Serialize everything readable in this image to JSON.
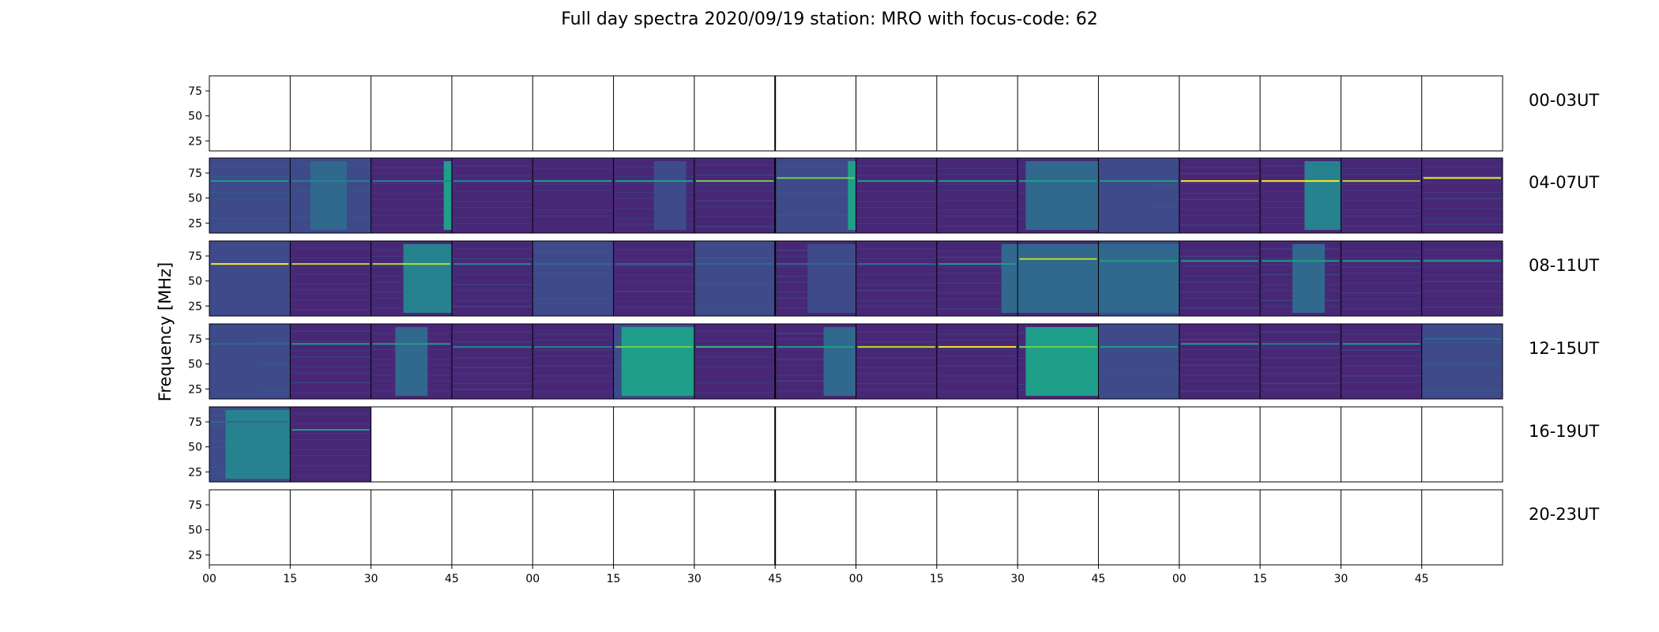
{
  "chart_data": {
    "type": "heatmap",
    "title": "Full day spectra 2020/09/19 station: MRO with focus-code: 62",
    "ylabel": "Frequency [MHz]",
    "xlabel": "",
    "y_ticks": [
      "75",
      "50",
      "25"
    ],
    "ylim": [
      15,
      90
    ],
    "x_ticks": [
      "00",
      "15",
      "30",
      "45",
      "00",
      "15",
      "30",
      "45",
      "00",
      "15",
      "30",
      "45",
      "00",
      "15",
      "30",
      "45"
    ],
    "panels_per_row": 16,
    "minutes_per_panel": 15,
    "colormap": [
      "#440154",
      "#482777",
      "#3e4a89",
      "#31688e",
      "#26828e",
      "#1f9e89",
      "#35b779",
      "#6ece58",
      "#b5de2b",
      "#fde725"
    ],
    "rows": [
      {
        "label": "00-03UT",
        "panels": []
      },
      {
        "label": "04-07UT",
        "panels": [
          {
            "level": 0.2,
            "band_y": 67,
            "band_level": 0.55,
            "burst": null
          },
          {
            "level": 0.18,
            "band_y": 67,
            "band_level": 0.45,
            "burst": {
              "x0": 0.25,
              "x1": 0.7,
              "level": 0.28
            }
          },
          {
            "level": 0.15,
            "band_y": 67,
            "band_level": 0.45,
            "burst": {
              "x0": 0.9,
              "x1": 1.0,
              "level": 0.55
            }
          },
          {
            "level": 0.12,
            "band_y": 67,
            "band_level": 0.45,
            "burst": null
          },
          {
            "level": 0.08,
            "band_y": 67,
            "band_level": 0.5,
            "burst": null
          },
          {
            "level": 0.14,
            "band_y": 67,
            "band_level": 0.55,
            "burst": {
              "x0": 0.5,
              "x1": 0.9,
              "level": 0.22
            }
          },
          {
            "level": 0.16,
            "band_y": 67,
            "band_level": 0.75,
            "burst": null
          },
          {
            "level": 0.18,
            "band_y": 70,
            "band_level": 0.8,
            "burst": {
              "x0": 0.9,
              "x1": 1.0,
              "level": 0.55
            }
          },
          {
            "level": 0.15,
            "band_y": 67,
            "band_level": 0.5,
            "burst": null
          },
          {
            "level": 0.15,
            "band_y": 67,
            "band_level": 0.5,
            "burst": null
          },
          {
            "level": 0.1,
            "band_y": 67,
            "band_level": 0.6,
            "burst": {
              "x0": 0.1,
              "x1": 1.0,
              "level": 0.3
            }
          },
          {
            "level": 0.18,
            "band_y": 67,
            "band_level": 0.5,
            "burst": {
              "x0": 0.0,
              "x1": 0.7,
              "level": 0.25
            }
          },
          {
            "level": 0.16,
            "band_y": 67,
            "band_level": 0.95,
            "burst": null
          },
          {
            "level": 0.15,
            "band_y": 67,
            "band_level": 0.95,
            "burst": {
              "x0": 0.55,
              "x1": 1.0,
              "level": 0.4
            }
          },
          {
            "level": 0.15,
            "band_y": 67,
            "band_level": 0.9,
            "burst": null
          },
          {
            "level": 0.16,
            "band_y": 70,
            "band_level": 0.95,
            "burst": null
          }
        ]
      },
      {
        "label": "08-11UT",
        "panels": [
          {
            "level": 0.22,
            "band_y": 67,
            "band_level": 0.95,
            "burst": {
              "x0": 0.0,
              "x1": 1.0,
              "level": 0.25
            }
          },
          {
            "level": 0.12,
            "band_y": 67,
            "band_level": 0.9,
            "burst": null
          },
          {
            "level": 0.14,
            "band_y": 67,
            "band_level": 0.9,
            "burst": {
              "x0": 0.4,
              "x1": 1.0,
              "level": 0.48
            }
          },
          {
            "level": 0.16,
            "band_y": 67,
            "band_level": 0.45,
            "burst": null
          },
          {
            "level": 0.18,
            "band_y": 67,
            "band_level": 0.3,
            "burst": null
          },
          {
            "level": 0.16,
            "band_y": 67,
            "band_level": 0.3,
            "burst": null
          },
          {
            "level": 0.18,
            "band_y": 67,
            "band_level": 0.3,
            "burst": null
          },
          {
            "level": 0.16,
            "band_y": 67,
            "band_level": 0.3,
            "burst": {
              "x0": 0.4,
              "x1": 1.0,
              "level": 0.25
            }
          },
          {
            "level": 0.16,
            "band_y": 67,
            "band_level": 0.3,
            "burst": null
          },
          {
            "level": 0.16,
            "band_y": 67,
            "band_level": 0.5,
            "burst": {
              "x0": 0.8,
              "x1": 1.0,
              "level": 0.35
            }
          },
          {
            "level": 0.14,
            "band_y": 72,
            "band_level": 0.85,
            "burst": {
              "x0": 0.0,
              "x1": 1.0,
              "level": 0.3
            }
          },
          {
            "level": 0.18,
            "band_y": 70,
            "band_level": 0.6,
            "burst": {
              "x0": 0.0,
              "x1": 1.0,
              "level": 0.28
            }
          },
          {
            "level": 0.16,
            "band_y": 70,
            "band_level": 0.6,
            "burst": null
          },
          {
            "level": 0.16,
            "band_y": 70,
            "band_level": 0.55,
            "burst": {
              "x0": 0.4,
              "x1": 0.8,
              "level": 0.35
            }
          },
          {
            "level": 0.16,
            "band_y": 70,
            "band_level": 0.55,
            "burst": null
          },
          {
            "level": 0.16,
            "band_y": 70,
            "band_level": 0.55,
            "burst": null
          }
        ]
      },
      {
        "label": "12-15UT",
        "panels": [
          {
            "level": 0.18,
            "band_y": 70,
            "band_level": 0.3,
            "burst": {
              "x0": 0.0,
              "x1": 0.6,
              "level": 0.24
            }
          },
          {
            "level": 0.16,
            "band_y": 70,
            "band_level": 0.55,
            "burst": null
          },
          {
            "level": 0.14,
            "band_y": 70,
            "band_level": 0.55,
            "burst": {
              "x0": 0.3,
              "x1": 0.7,
              "level": 0.35
            }
          },
          {
            "level": 0.16,
            "band_y": 67,
            "band_level": 0.4,
            "burst": null
          },
          {
            "level": 0.12,
            "band_y": 67,
            "band_level": 0.45,
            "burst": null
          },
          {
            "level": 0.2,
            "band_y": 67,
            "band_level": 0.8,
            "burst": {
              "x0": 0.1,
              "x1": 1.0,
              "level": 0.6
            }
          },
          {
            "level": 0.1,
            "band_y": 67,
            "band_level": 0.7,
            "burst": null
          },
          {
            "level": 0.16,
            "band_y": 67,
            "band_level": 0.6,
            "burst": {
              "x0": 0.6,
              "x1": 1.0,
              "level": 0.35
            }
          },
          {
            "level": 0.14,
            "band_y": 67,
            "band_level": 0.9,
            "burst": null
          },
          {
            "level": 0.14,
            "band_y": 67,
            "band_level": 0.95,
            "burst": null
          },
          {
            "level": 0.16,
            "band_y": 67,
            "band_level": 0.8,
            "burst": {
              "x0": 0.1,
              "x1": 1.0,
              "level": 0.55
            }
          },
          {
            "level": 0.18,
            "band_y": 67,
            "band_level": 0.6,
            "burst": null
          },
          {
            "level": 0.16,
            "band_y": 70,
            "band_level": 0.5,
            "burst": null
          },
          {
            "level": 0.16,
            "band_y": 70,
            "band_level": 0.45,
            "burst": null
          },
          {
            "level": 0.16,
            "band_y": 70,
            "band_level": 0.55,
            "burst": null
          },
          {
            "level": 0.18,
            "band_y": 75,
            "band_level": 0.35,
            "burst": null
          }
        ]
      },
      {
        "label": "16-19UT",
        "panels": [
          {
            "level": 0.2,
            "band_y": 75,
            "band_level": 0.35,
            "burst": {
              "x0": 0.2,
              "x1": 1.0,
              "level": 0.4
            }
          },
          {
            "level": 0.14,
            "band_y": 67,
            "band_level": 0.6,
            "burst": null
          }
        ]
      },
      {
        "label": "20-23UT",
        "panels": []
      }
    ]
  }
}
